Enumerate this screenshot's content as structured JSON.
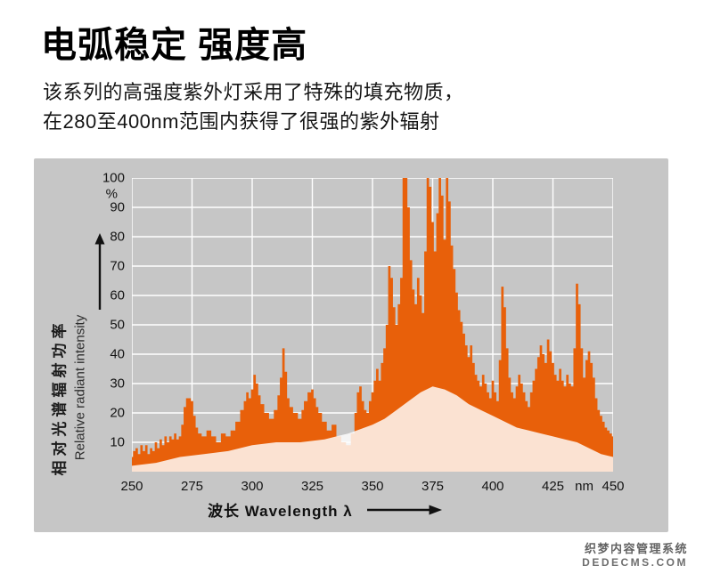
{
  "page": {
    "title": "电弧稳定 强度高",
    "subtitle_line1": "该系列的高强度紫外灯采用了特殊的填充物质，",
    "subtitle_line2": "在280至400nm范围内获得了很强的紫外辐射"
  },
  "watermark": {
    "line1": "织梦内容管理系统",
    "line2": "DEDECMS.COM"
  },
  "colors": {
    "panel_bg": "#c6c6c6",
    "grid": "#ffffff",
    "spectrum": "#e8600a",
    "continuum": "rgba(255,255,255,0.82)",
    "text": "#111111"
  },
  "chart_data": {
    "type": "area",
    "title": "UV lamp relative spectral radiant power",
    "xlabel": "波长  Wavelength λ",
    "ylabel_cn": "相对光谱辐射功率",
    "ylabel_en": "Relative radiant intensity",
    "x_unit": "nm",
    "y_unit": "%",
    "xlim": [
      250,
      450
    ],
    "ylim": [
      0,
      100
    ],
    "x_ticks": [
      250,
      275,
      300,
      325,
      350,
      375,
      400,
      425,
      450
    ],
    "y_ticks": [
      10,
      20,
      30,
      40,
      50,
      60,
      70,
      80,
      90,
      100
    ],
    "x_unit_position_nm": 438,
    "grid": true,
    "legend": "none",
    "series": [
      {
        "name": "spectral-lines",
        "style": "step-fill",
        "color": "#e8600a",
        "points": [
          [
            250,
            5
          ],
          [
            251,
            7
          ],
          [
            252,
            8
          ],
          [
            253,
            6
          ],
          [
            254,
            9
          ],
          [
            255,
            7
          ],
          [
            256,
            9
          ],
          [
            257,
            6
          ],
          [
            258,
            8
          ],
          [
            259,
            7
          ],
          [
            260,
            10
          ],
          [
            261,
            8
          ],
          [
            262,
            11
          ],
          [
            263,
            9
          ],
          [
            264,
            12
          ],
          [
            265,
            10
          ],
          [
            266,
            12
          ],
          [
            267,
            11
          ],
          [
            268,
            13
          ],
          [
            269,
            11
          ],
          [
            270,
            12
          ],
          [
            271,
            16
          ],
          [
            272,
            22
          ],
          [
            273,
            25
          ],
          [
            274,
            25
          ],
          [
            275,
            24
          ],
          [
            276,
            19
          ],
          [
            277,
            15
          ],
          [
            278,
            13
          ],
          [
            280,
            12
          ],
          [
            282,
            14
          ],
          [
            284,
            12
          ],
          [
            286,
            10
          ],
          [
            288,
            13
          ],
          [
            290,
            12
          ],
          [
            292,
            14
          ],
          [
            294,
            17
          ],
          [
            296,
            21
          ],
          [
            297,
            24
          ],
          [
            298,
            27
          ],
          [
            299,
            25
          ],
          [
            300,
            28
          ],
          [
            301,
            33
          ],
          [
            302,
            30
          ],
          [
            303,
            26
          ],
          [
            304,
            23
          ],
          [
            306,
            20
          ],
          [
            308,
            18
          ],
          [
            310,
            21
          ],
          [
            311,
            26
          ],
          [
            312,
            32
          ],
          [
            313,
            42
          ],
          [
            314,
            34
          ],
          [
            315,
            25
          ],
          [
            316,
            22
          ],
          [
            318,
            20
          ],
          [
            320,
            18
          ],
          [
            321,
            21
          ],
          [
            322,
            24
          ],
          [
            324,
            27
          ],
          [
            325,
            28
          ],
          [
            326,
            25
          ],
          [
            327,
            22
          ],
          [
            328,
            20
          ],
          [
            330,
            17
          ],
          [
            332,
            14
          ],
          [
            334,
            16
          ],
          [
            336,
            12
          ],
          [
            338,
            10
          ],
          [
            340,
            9
          ],
          [
            342,
            13
          ],
          [
            343,
            20
          ],
          [
            344,
            27
          ],
          [
            345,
            29
          ],
          [
            346,
            24
          ],
          [
            347,
            21
          ],
          [
            348,
            20
          ],
          [
            349,
            24
          ],
          [
            350,
            27
          ],
          [
            351,
            31
          ],
          [
            352,
            35
          ],
          [
            353,
            31
          ],
          [
            354,
            37
          ],
          [
            355,
            42
          ],
          [
            356,
            50
          ],
          [
            357,
            70
          ],
          [
            358,
            66
          ],
          [
            359,
            56
          ],
          [
            360,
            50
          ],
          [
            361,
            57
          ],
          [
            362,
            66
          ],
          [
            363,
            100
          ],
          [
            364,
            100
          ],
          [
            365,
            90
          ],
          [
            366,
            72
          ],
          [
            367,
            62
          ],
          [
            368,
            57
          ],
          [
            369,
            66
          ],
          [
            370,
            60
          ],
          [
            371,
            54
          ],
          [
            372,
            75
          ],
          [
            373,
            100
          ],
          [
            374,
            97
          ],
          [
            375,
            85
          ],
          [
            376,
            75
          ],
          [
            377,
            88
          ],
          [
            378,
            100
          ],
          [
            379,
            94
          ],
          [
            380,
            79
          ],
          [
            381,
            100
          ],
          [
            382,
            92
          ],
          [
            383,
            77
          ],
          [
            384,
            69
          ],
          [
            385,
            61
          ],
          [
            386,
            55
          ],
          [
            387,
            51
          ],
          [
            388,
            47
          ],
          [
            389,
            43
          ],
          [
            390,
            39
          ],
          [
            391,
            43
          ],
          [
            392,
            37
          ],
          [
            393,
            33
          ],
          [
            394,
            31
          ],
          [
            395,
            29
          ],
          [
            396,
            33
          ],
          [
            397,
            30
          ],
          [
            398,
            27
          ],
          [
            399,
            25
          ],
          [
            400,
            31
          ],
          [
            401,
            27
          ],
          [
            402,
            24
          ],
          [
            403,
            38
          ],
          [
            404,
            63
          ],
          [
            405,
            56
          ],
          [
            406,
            42
          ],
          [
            407,
            32
          ],
          [
            408,
            27
          ],
          [
            409,
            25
          ],
          [
            410,
            29
          ],
          [
            411,
            33
          ],
          [
            412,
            30
          ],
          [
            413,
            27
          ],
          [
            414,
            24
          ],
          [
            415,
            22
          ],
          [
            416,
            27
          ],
          [
            417,
            31
          ],
          [
            418,
            35
          ],
          [
            419,
            39
          ],
          [
            420,
            43
          ],
          [
            421,
            40
          ],
          [
            422,
            37
          ],
          [
            423,
            45
          ],
          [
            424,
            41
          ],
          [
            425,
            37
          ],
          [
            426,
            33
          ],
          [
            427,
            31
          ],
          [
            428,
            35
          ],
          [
            429,
            31
          ],
          [
            430,
            29
          ],
          [
            431,
            33
          ],
          [
            432,
            30
          ],
          [
            433,
            29
          ],
          [
            434,
            42
          ],
          [
            435,
            64
          ],
          [
            436,
            57
          ],
          [
            437,
            42
          ],
          [
            438,
            32
          ],
          [
            439,
            38
          ],
          [
            440,
            41
          ],
          [
            441,
            37
          ],
          [
            442,
            32
          ],
          [
            443,
            25
          ],
          [
            444,
            21
          ],
          [
            445,
            19
          ],
          [
            446,
            17
          ],
          [
            447,
            15
          ],
          [
            448,
            14
          ],
          [
            449,
            13
          ],
          [
            450,
            12
          ]
        ]
      },
      {
        "name": "white-continuum-under-curve",
        "style": "smooth-fill",
        "color": "rgba(255,255,255,0.82)",
        "points": [
          [
            250,
            2
          ],
          [
            260,
            3
          ],
          [
            270,
            5
          ],
          [
            280,
            6
          ],
          [
            290,
            7
          ],
          [
            300,
            9
          ],
          [
            310,
            10
          ],
          [
            320,
            10
          ],
          [
            330,
            11
          ],
          [
            340,
            13
          ],
          [
            350,
            16
          ],
          [
            355,
            18
          ],
          [
            360,
            21
          ],
          [
            365,
            24
          ],
          [
            370,
            27
          ],
          [
            375,
            29
          ],
          [
            380,
            28
          ],
          [
            385,
            26
          ],
          [
            390,
            23
          ],
          [
            395,
            21
          ],
          [
            400,
            19
          ],
          [
            405,
            17
          ],
          [
            410,
            15
          ],
          [
            415,
            14
          ],
          [
            420,
            13
          ],
          [
            425,
            12
          ],
          [
            430,
            11
          ],
          [
            435,
            10
          ],
          [
            440,
            8
          ],
          [
            445,
            6
          ],
          [
            450,
            5
          ]
        ]
      }
    ]
  }
}
